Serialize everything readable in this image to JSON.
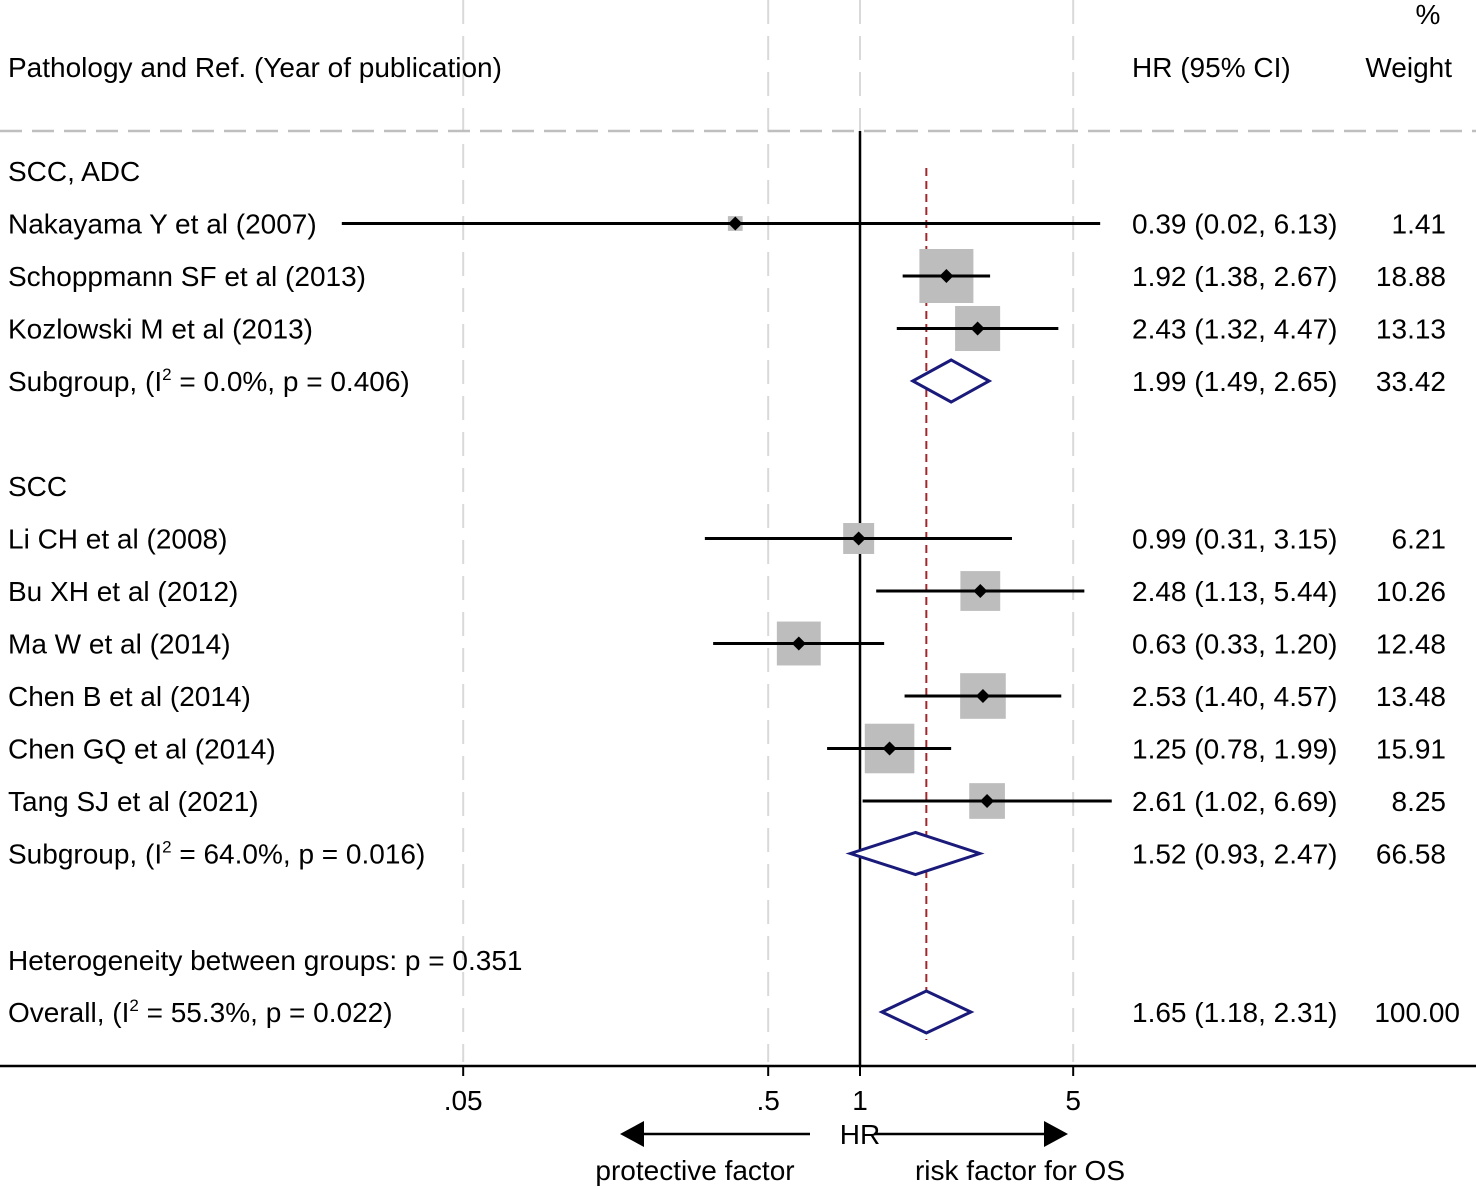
{
  "header": {
    "study_col": "Pathology and Ref. (Year of publication)",
    "hr_col": "HR (95% CI)",
    "weight_pct": "%",
    "weight_col": "Weight"
  },
  "footer": {
    "heterogeneity": "Heterogeneity between groups: p = 0.351",
    "axis_label": "HR",
    "left_arrow_label": "protective factor",
    "right_arrow_label": "risk factor for OS"
  },
  "colors": {
    "box": "#bdbdbd",
    "diamond": "#1a1a7a",
    "overall_line": "#a0282d",
    "grid": "#d9d9d9"
  },
  "chart_data": {
    "type": "forest",
    "xscale": "log",
    "xlim": [
      0.02,
      20
    ],
    "ticks": [
      {
        "v": 0.05,
        "label": ".05"
      },
      {
        "v": 0.5,
        "label": ".5"
      },
      {
        "v": 1,
        "label": "1"
      },
      {
        "v": 5,
        "label": "5"
      }
    ],
    "null_line": 1,
    "overall_estimate": 1.65,
    "groups": [
      {
        "name": "SCC, ADC",
        "studies": [
          {
            "label": "Nakayama Y et al (2007)",
            "hr": 0.39,
            "lo": 0.02,
            "hi": 6.13,
            "hr_text": "0.39 (0.02, 6.13)",
            "weight": 1.41,
            "weight_text": "1.41"
          },
          {
            "label": "Schoppmann SF  et al (2013)",
            "hr": 1.92,
            "lo": 1.38,
            "hi": 2.67,
            "hr_text": "1.92 (1.38, 2.67)",
            "weight": 18.88,
            "weight_text": "18.88"
          },
          {
            "label": "Kozlowski M et al (2013)",
            "hr": 2.43,
            "lo": 1.32,
            "hi": 4.47,
            "hr_text": "2.43 (1.32, 4.47)",
            "weight": 13.13,
            "weight_text": "13.13"
          }
        ],
        "subgroup": {
          "prefix": "Subgroup,  (I",
          "sup": "2",
          "suffix": " = 0.0%, p = 0.406)",
          "hr": 1.99,
          "lo": 1.49,
          "hi": 2.65,
          "hr_text": "1.99 (1.49, 2.65)",
          "weight_text": "33.42"
        }
      },
      {
        "name": "SCC",
        "studies": [
          {
            "label": "Li CH et al (2008)",
            "hr": 0.99,
            "lo": 0.31,
            "hi": 3.15,
            "hr_text": "0.99 (0.31, 3.15)",
            "weight": 6.21,
            "weight_text": "6.21"
          },
          {
            "label": "Bu XH et al (2012)",
            "hr": 2.48,
            "lo": 1.13,
            "hi": 5.44,
            "hr_text": "2.48 (1.13, 5.44)",
            "weight": 10.26,
            "weight_text": "10.26"
          },
          {
            "label": "Ma W et al (2014)",
            "hr": 0.63,
            "lo": 0.33,
            "hi": 1.2,
            "hr_text": "0.63 (0.33, 1.20)",
            "weight": 12.48,
            "weight_text": "12.48"
          },
          {
            "label": "Chen B et al (2014)",
            "hr": 2.53,
            "lo": 1.4,
            "hi": 4.57,
            "hr_text": "2.53 (1.40, 4.57)",
            "weight": 13.48,
            "weight_text": "13.48"
          },
          {
            "label": "Chen GQ et al (2014)",
            "hr": 1.25,
            "lo": 0.78,
            "hi": 1.99,
            "hr_text": "1.25 (0.78, 1.99)",
            "weight": 15.91,
            "weight_text": "15.91"
          },
          {
            "label": "Tang SJ et al (2021)",
            "hr": 2.61,
            "lo": 1.02,
            "hi": 6.69,
            "hr_text": "2.61 (1.02, 6.69)",
            "weight": 8.25,
            "weight_text": "8.25"
          }
        ],
        "subgroup": {
          "prefix": "Subgroup,  (I",
          "sup": "2",
          "suffix": " = 64.0%, p = 0.016)",
          "hr": 1.52,
          "lo": 0.93,
          "hi": 2.47,
          "hr_text": "1.52 (0.93, 2.47)",
          "weight_text": "66.58"
        }
      }
    ],
    "overall": {
      "prefix": "Overall,  (I",
      "sup": "2",
      "suffix": " = 55.3%, p = 0.022)",
      "hr": 1.65,
      "lo": 1.18,
      "hi": 2.31,
      "hr_text": "1.65 (1.18, 2.31)",
      "weight_text": "100.00"
    }
  }
}
